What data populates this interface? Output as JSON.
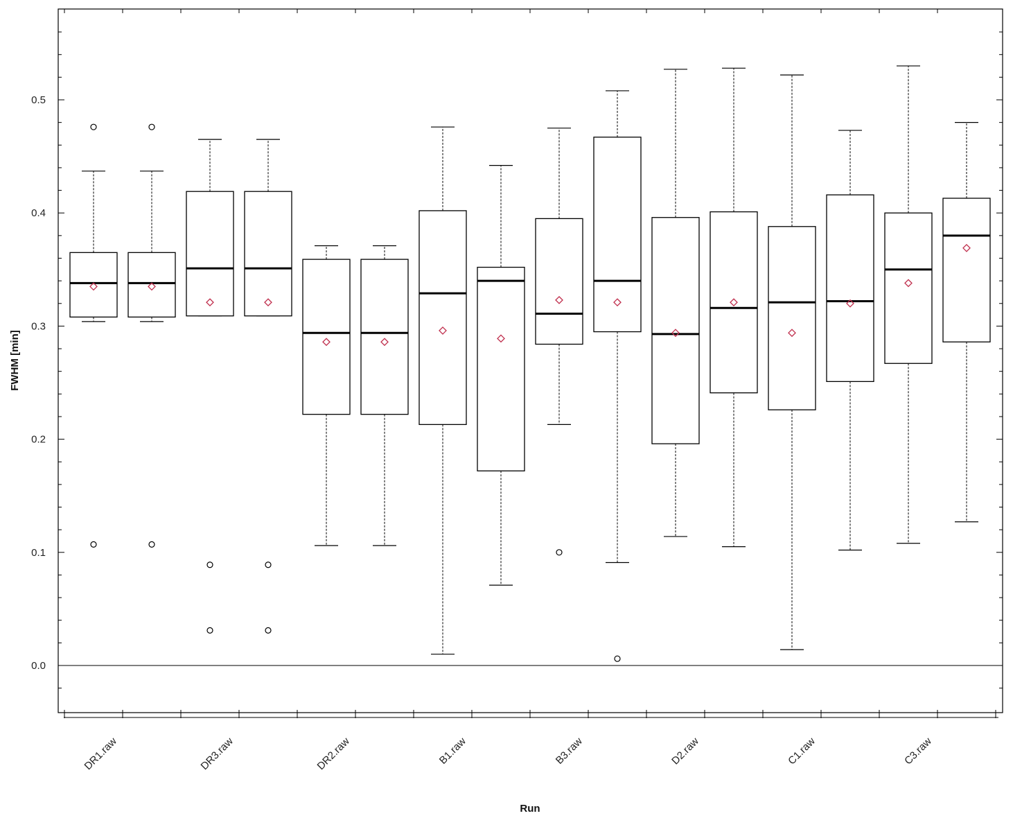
{
  "chart_data": {
    "type": "box",
    "xlabel": "Run",
    "ylabel": "FWHM [min]",
    "ylim": [
      -0.04,
      0.58
    ],
    "yticks": [
      "0.0",
      "0.1",
      "0.2",
      "0.3",
      "0.4",
      "0.5"
    ],
    "ytick_values": [
      0.0,
      0.1,
      0.2,
      0.3,
      0.4,
      0.5
    ],
    "x_tick_labels": [
      "DR1.raw",
      "DR3.raw",
      "DR2.raw",
      "B1.raw",
      "B3.raw",
      "D2.raw",
      "C1.raw",
      "C3.raw"
    ],
    "reference_line": 0.0,
    "grid": false,
    "colors": {
      "box": "#000000",
      "mean_marker": "#c0304e"
    },
    "boxes": [
      {
        "whisker_low": 0.304,
        "q1": 0.308,
        "median": 0.338,
        "q3": 0.365,
        "whisker_high": 0.437,
        "mean": 0.335,
        "outliers": [
          0.476,
          0.107
        ]
      },
      {
        "whisker_low": 0.304,
        "q1": 0.308,
        "median": 0.338,
        "q3": 0.365,
        "whisker_high": 0.437,
        "mean": 0.335,
        "outliers": [
          0.476,
          0.107
        ]
      },
      {
        "whisker_low": 0.309,
        "q1": 0.309,
        "median": 0.351,
        "q3": 0.419,
        "whisker_high": 0.465,
        "mean": 0.321,
        "outliers": [
          0.089,
          0.031
        ]
      },
      {
        "whisker_low": 0.309,
        "q1": 0.309,
        "median": 0.351,
        "q3": 0.419,
        "whisker_high": 0.465,
        "mean": 0.321,
        "outliers": [
          0.089,
          0.031
        ]
      },
      {
        "whisker_low": 0.106,
        "q1": 0.222,
        "median": 0.294,
        "q3": 0.359,
        "whisker_high": 0.371,
        "mean": 0.286,
        "outliers": []
      },
      {
        "whisker_low": 0.106,
        "q1": 0.222,
        "median": 0.294,
        "q3": 0.359,
        "whisker_high": 0.371,
        "mean": 0.286,
        "outliers": []
      },
      {
        "whisker_low": 0.01,
        "q1": 0.213,
        "median": 0.329,
        "q3": 0.402,
        "whisker_high": 0.476,
        "mean": 0.296,
        "outliers": []
      },
      {
        "whisker_low": 0.071,
        "q1": 0.172,
        "median": 0.34,
        "q3": 0.352,
        "whisker_high": 0.442,
        "mean": 0.289,
        "outliers": []
      },
      {
        "whisker_low": 0.213,
        "q1": 0.284,
        "median": 0.311,
        "q3": 0.395,
        "whisker_high": 0.475,
        "mean": 0.323,
        "outliers": [
          0.1
        ]
      },
      {
        "whisker_low": 0.091,
        "q1": 0.295,
        "median": 0.34,
        "q3": 0.467,
        "whisker_high": 0.508,
        "mean": 0.321,
        "outliers": [
          0.006
        ]
      },
      {
        "whisker_low": 0.114,
        "q1": 0.196,
        "median": 0.293,
        "q3": 0.396,
        "whisker_high": 0.527,
        "mean": 0.294,
        "outliers": []
      },
      {
        "whisker_low": 0.105,
        "q1": 0.241,
        "median": 0.316,
        "q3": 0.401,
        "whisker_high": 0.528,
        "mean": 0.321,
        "outliers": []
      },
      {
        "whisker_low": 0.014,
        "q1": 0.226,
        "median": 0.321,
        "q3": 0.388,
        "whisker_high": 0.522,
        "mean": 0.294,
        "outliers": []
      },
      {
        "whisker_low": 0.102,
        "q1": 0.251,
        "median": 0.322,
        "q3": 0.416,
        "whisker_high": 0.473,
        "mean": 0.32,
        "outliers": []
      },
      {
        "whisker_low": 0.108,
        "q1": 0.267,
        "median": 0.35,
        "q3": 0.4,
        "whisker_high": 0.53,
        "mean": 0.338,
        "outliers": []
      },
      {
        "whisker_low": 0.127,
        "q1": 0.286,
        "median": 0.38,
        "q3": 0.413,
        "whisker_high": 0.48,
        "mean": 0.369,
        "outliers": []
      }
    ]
  }
}
